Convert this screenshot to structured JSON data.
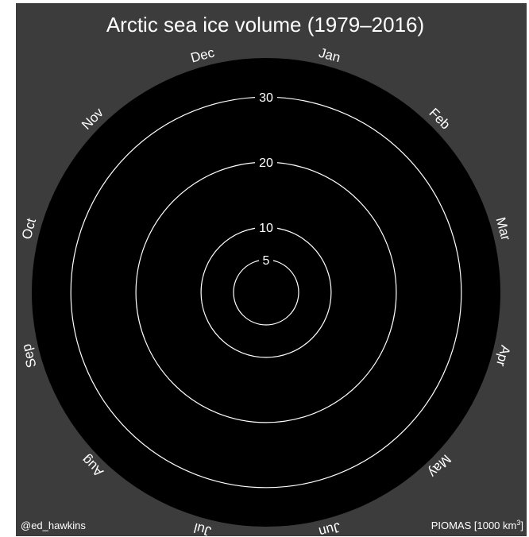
{
  "chart_data": {
    "type": "polar-spiral",
    "title": "Arctic sea ice volume (1979–2016)",
    "months": [
      "Jan",
      "Feb",
      "Mar",
      "Apr",
      "May",
      "Jun",
      "Jul",
      "Aug",
      "Sep",
      "Oct",
      "Nov",
      "Dec"
    ],
    "rings": [
      {
        "value": 5,
        "label": "5"
      },
      {
        "value": 10,
        "label": "10"
      },
      {
        "value": 20,
        "label": "20"
      },
      {
        "value": 30,
        "label": "30"
      }
    ],
    "rlim": [
      0,
      36
    ],
    "series": [],
    "colors": {
      "background": "#3c3c3c",
      "plot_area": "#000000",
      "rings": "#ffffff",
      "text": "#ffffff"
    }
  },
  "credit": "@ed_hawkins",
  "source": {
    "text": "PIOMAS [1000 km",
    "superscript": "3",
    "suffix": "]"
  }
}
